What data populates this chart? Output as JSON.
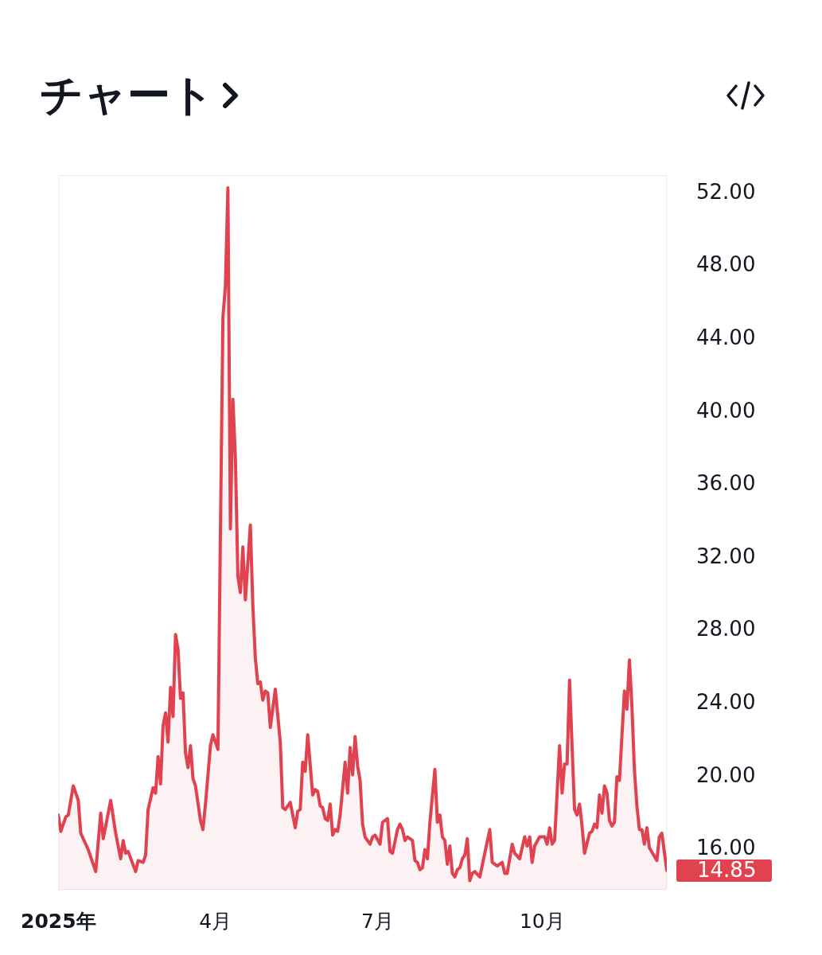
{
  "chart_data": {
    "type": "area",
    "title": "チャート",
    "x": [
      "2025-01-02",
      "2025-01-03",
      "2025-01-07",
      "2025-01-08",
      "2025-01-10",
      "2025-01-14",
      "2025-01-15",
      "2025-01-20",
      "2025-01-23",
      "2025-01-27",
      "2025-01-28",
      "2025-01-31",
      "2025-02-04",
      "2025-02-06",
      "2025-02-07",
      "2025-02-10",
      "2025-02-11",
      "2025-02-14",
      "2025-02-17",
      "2025-02-19",
      "2025-02-20",
      "2025-02-21",
      "2025-02-25",
      "2025-02-26",
      "2025-02-27",
      "2025-02-28",
      "2025-03-03",
      "2025-03-04",
      "2025-03-05",
      "2025-03-06",
      "2025-03-07",
      "2025-03-10",
      "2025-03-11",
      "2025-03-12",
      "2025-03-13",
      "2025-03-14",
      "2025-03-17",
      "2025-03-18",
      "2025-03-19",
      "2025-03-20",
      "2025-03-24",
      "2025-03-25",
      "2025-03-26",
      "2025-03-28",
      "2025-03-31",
      "2025-04-02",
      "2025-04-04",
      "2025-04-07",
      "2025-04-08",
      "2025-04-09",
      "2025-04-10",
      "2025-04-11",
      "2025-04-14",
      "2025-04-15",
      "2025-04-16",
      "2025-04-17",
      "2025-04-21",
      "2025-04-22",
      "2025-04-23",
      "2025-04-24",
      "2025-04-25",
      "2025-04-28",
      "2025-04-29",
      "2025-04-30",
      "2025-05-01",
      "2025-05-05",
      "2025-05-07",
      "2025-05-08",
      "2025-05-09",
      "2025-05-13",
      "2025-05-15",
      "2025-05-16",
      "2025-05-19",
      "2025-05-20",
      "2025-05-21",
      "2025-05-22",
      "2025-05-26",
      "2025-05-27",
      "2025-05-28",
      "2025-05-29",
      "2025-05-30",
      "2025-06-02",
      "2025-06-03",
      "2025-06-04",
      "2025-06-05",
      "2025-06-06",
      "2025-06-09",
      "2025-06-10",
      "2025-06-12",
      "2025-06-13",
      "2025-06-16",
      "2025-06-17",
      "2025-06-18",
      "2025-06-19",
      "2025-06-20",
      "2025-06-23",
      "2025-06-24",
      "2025-06-26",
      "2025-06-27",
      "2025-06-30",
      "2025-07-02",
      "2025-07-03",
      "2025-07-07",
      "2025-07-08",
      "2025-07-09",
      "2025-07-11",
      "2025-07-14",
      "2025-07-15",
      "2025-07-16",
      "2025-07-17",
      "2025-07-21",
      "2025-07-22",
      "2025-07-23",
      "2025-07-24",
      "2025-07-25",
      "2025-07-28",
      "2025-07-29",
      "2025-07-30",
      "2025-08-01",
      "2025-08-04",
      "2025-08-05",
      "2025-08-06",
      "2025-08-07",
      "2025-08-08",
      "2025-08-11",
      "2025-08-12",
      "2025-08-13",
      "2025-08-14",
      "2025-08-15",
      "2025-08-18",
      "2025-08-19",
      "2025-08-20",
      "2025-08-21",
      "2025-08-22",
      "2025-08-25",
      "2025-08-27",
      "2025-09-02",
      "2025-09-03",
      "2025-09-05",
      "2025-09-09",
      "2025-09-10",
      "2025-09-11",
      "2025-09-15",
      "2025-09-16",
      "2025-09-18",
      "2025-09-22",
      "2025-09-23",
      "2025-09-24",
      "2025-09-25",
      "2025-09-26",
      "2025-09-30",
      "2025-10-02",
      "2025-10-03",
      "2025-10-06",
      "2025-10-07",
      "2025-10-08",
      "2025-10-10",
      "2025-10-13",
      "2025-10-14",
      "2025-10-15",
      "2025-10-16",
      "2025-10-17",
      "2025-10-20",
      "2025-10-21",
      "2025-10-22",
      "2025-10-23",
      "2025-10-24",
      "2025-10-28",
      "2025-10-29",
      "2025-10-30",
      "2025-10-31",
      "2025-11-03",
      "2025-11-04",
      "2025-11-05",
      "2025-11-06",
      "2025-11-07",
      "2025-11-10",
      "2025-11-11",
      "2025-11-12",
      "2025-11-13",
      "2025-11-17",
      "2025-11-18",
      "2025-11-19",
      "2025-11-20",
      "2025-11-21",
      "2025-11-24",
      "2025-11-25",
      "2025-11-26",
      "2025-11-27",
      "2025-11-28",
      "2025-12-01",
      "2025-12-04",
      "2025-12-05",
      "2025-12-08",
      "2025-12-10"
    ],
    "series": [
      {
        "color": "#e0434f",
        "values": [
          17.9,
          17.0,
          17.8,
          17.9,
          19.5,
          18.7,
          16.9,
          16.0,
          14.8,
          18.0,
          16.6,
          18.7,
          16.9,
          15.5,
          16.5,
          15.8,
          15.9,
          14.8,
          15.4,
          15.3,
          15.7,
          18.2,
          19.4,
          19.1,
          21.1,
          19.6,
          22.8,
          23.5,
          21.9,
          24.9,
          23.3,
          27.8,
          27.0,
          24.3,
          24.6,
          21.3,
          20.5,
          21.7,
          19.9,
          19.5,
          17.6,
          17.1,
          18.5,
          21.7,
          22.3,
          21.5,
          45.2,
          46.9,
          52.3,
          33.6,
          40.7,
          37.5,
          31.0,
          30.1,
          32.6,
          29.7,
          33.8,
          29.4,
          26.5,
          25.1,
          25.2,
          24.2,
          24.7,
          24.6,
          22.7,
          24.8,
          21.9,
          18.3,
          18.2,
          18.6,
          17.2,
          18.1,
          18.2,
          20.8,
          20.3,
          22.3,
          19.0,
          19.3,
          19.2,
          18.4,
          18.3,
          17.7,
          17.6,
          18.5,
          16.8,
          17.1,
          17.0,
          17.9,
          20.8,
          19.1,
          21.6,
          20.1,
          22.2,
          20.6,
          19.8,
          17.4,
          16.7,
          16.3,
          16.7,
          16.8,
          16.3,
          17.5,
          17.7,
          15.9,
          15.8,
          17.1,
          17.4,
          17.1,
          16.5,
          16.7,
          16.5,
          15.4,
          15.3,
          14.9,
          15.0,
          16.0,
          15.5,
          17.5,
          20.4,
          17.5,
          17.9,
          16.7,
          16.5,
          15.2,
          16.2,
          14.7,
          14.5,
          14.9,
          15.0,
          15.5,
          15.7,
          16.6,
          14.3,
          14.7,
          14.8,
          14.5,
          17.1,
          15.3,
          15.1,
          15.3,
          14.7,
          14.7,
          16.3,
          15.8,
          15.5,
          16.7,
          16.2,
          16.7,
          15.3,
          16.2,
          16.7,
          16.7,
          16.3,
          17.2,
          16.3,
          16.5,
          21.7,
          19.1,
          20.7,
          20.7,
          25.3,
          21.7,
          18.2,
          17.9,
          18.5,
          17.3,
          15.8,
          16.9,
          17.0,
          17.4,
          17.2,
          19.0,
          18.0,
          19.5,
          19.1,
          17.6,
          17.3,
          17.5,
          20.0,
          19.8,
          24.7,
          23.7,
          26.4,
          23.9,
          20.4,
          18.4,
          17.1,
          17.1,
          16.3,
          17.2,
          16.1,
          15.4,
          16.7,
          16.9,
          14.85
        ]
      }
    ],
    "xticks": [
      {
        "value": "2025-01-02",
        "label": "2025年"
      },
      {
        "value": "2025-04-01",
        "label": "4月"
      },
      {
        "value": "2025-07-01",
        "label": "7月"
      },
      {
        "value": "2025-10-01",
        "label": "10月"
      }
    ],
    "xlim": [
      "2025-01-02",
      "2025-12-10"
    ],
    "ylim": [
      13.8,
      53
    ],
    "yticks": [
      {
        "value": 16,
        "label": "16.00"
      },
      {
        "value": 20,
        "label": "20.00"
      },
      {
        "value": 24,
        "label": "24.00"
      },
      {
        "value": 28,
        "label": "28.00"
      },
      {
        "value": 32,
        "label": "32.00"
      },
      {
        "value": 36,
        "label": "36.00"
      },
      {
        "value": 40,
        "label": "40.00"
      },
      {
        "value": 44,
        "label": "44.00"
      },
      {
        "value": 48,
        "label": "48.00"
      },
      {
        "value": 52,
        "label": "52.00"
      }
    ],
    "annotations": [
      {
        "text": "14.85",
        "x": "2025-12-10",
        "y": 14.85
      }
    ],
    "grid": false,
    "legend": false,
    "marker": "none",
    "line_style": "solid"
  }
}
